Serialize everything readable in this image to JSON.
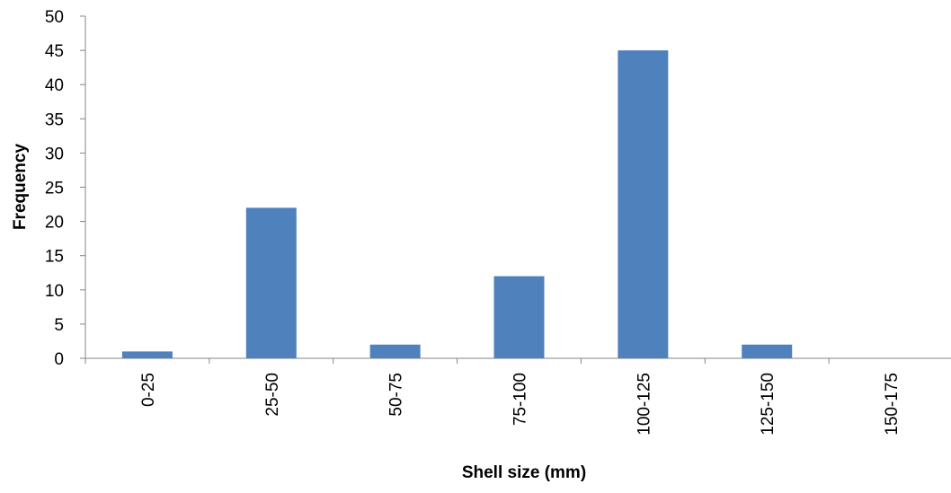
{
  "chart_data": {
    "type": "bar",
    "title": "",
    "xlabel": "Shell size (mm)",
    "ylabel": "Frequency",
    "categories": [
      "0-25",
      "25-50",
      "50-75",
      "75-100",
      "100-125",
      "125-150",
      "150-175"
    ],
    "series": [
      {
        "values": [
          1,
          22,
          2,
          12,
          45,
          2,
          0
        ],
        "color": "#4F81BD"
      }
    ],
    "ylim": [
      0,
      50
    ],
    "yticks": [
      "0",
      "5",
      "10",
      "15",
      "20",
      "25",
      "30",
      "35",
      "40",
      "45",
      "50"
    ],
    "grid": false,
    "legend": "none"
  }
}
